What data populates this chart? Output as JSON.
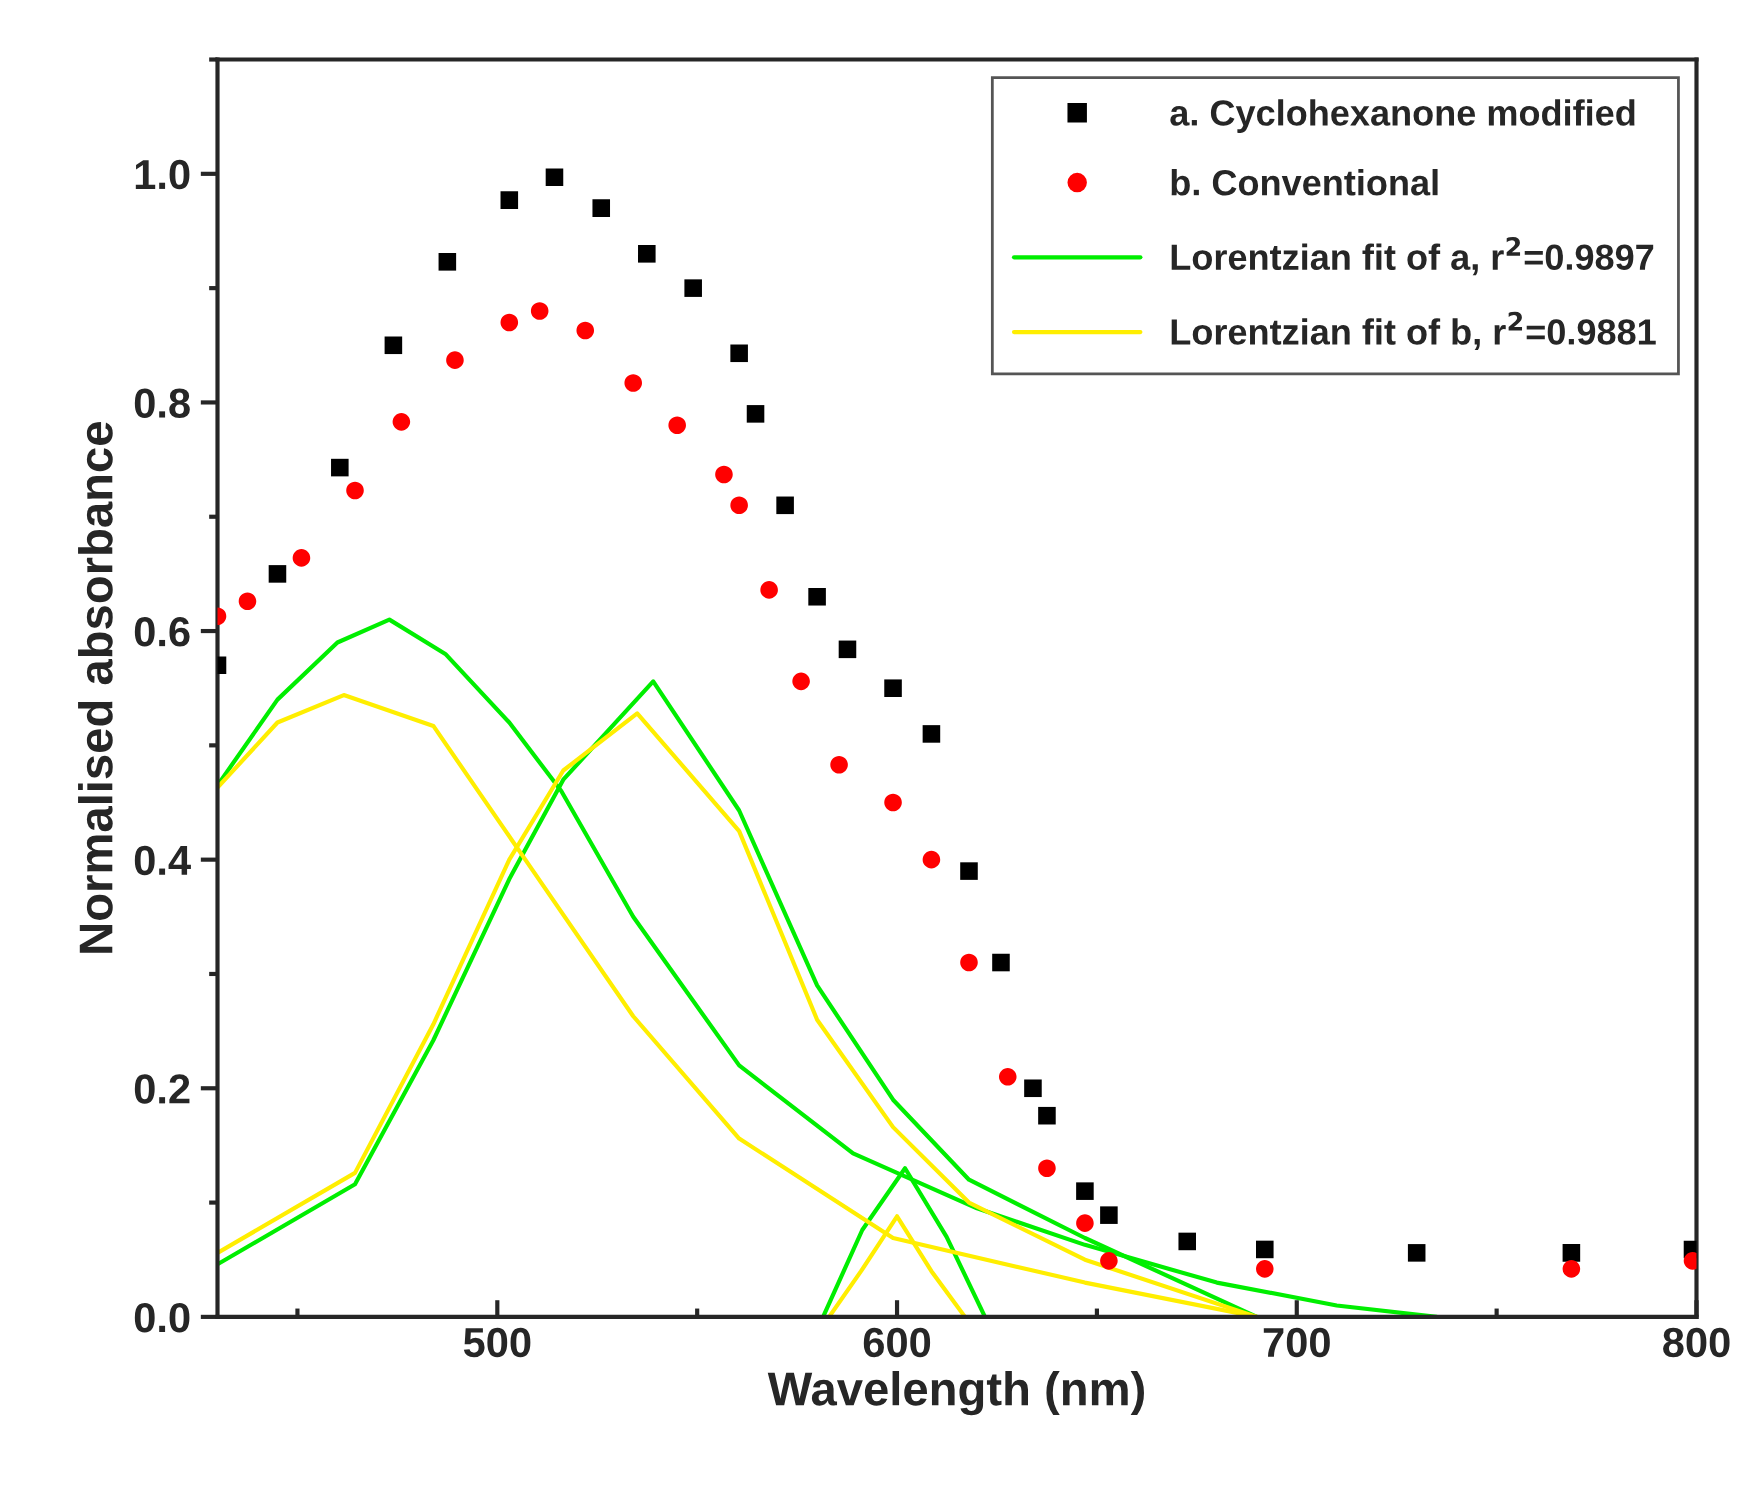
{
  "chart_data": {
    "type": "scatter",
    "xlabel": "Wavelength (nm)",
    "ylabel": "Normalised absorbance",
    "xlim": [
      430,
      800
    ],
    "xticks": [
      500,
      600,
      700,
      800
    ],
    "ylim": [
      0,
      1.1
    ],
    "yticks": [
      {
        "value": 0,
        "label": "0.0"
      },
      {
        "value": 0.2,
        "label": "0.2"
      },
      {
        "value": 0.4,
        "label": "0.4"
      },
      {
        "value": 0.6,
        "label": "0.6"
      },
      {
        "value": 0.8,
        "label": "0.8"
      },
      {
        "value": 1.0,
        "label": "1.0"
      }
    ],
    "grid": false,
    "legend": "top right",
    "series": [
      {
        "name": "a. Cyclohexanone modified",
        "color": "#000000",
        "marker": "square",
        "x": [
          430,
          445,
          460.6,
          474,
          487.5,
          503,
          514.3,
          526,
          537.4,
          549,
          560.5,
          564.6,
          572,
          580,
          587.6,
          599,
          608.6,
          618,
          626,
          634,
          637.5,
          647,
          653,
          672.6,
          692,
          730,
          768.7,
          799
        ],
        "values": [
          0.57,
          0.65,
          0.743,
          0.85,
          0.923,
          0.977,
          0.997,
          0.97,
          0.93,
          0.9,
          0.843,
          0.79,
          0.71,
          0.63,
          0.584,
          0.55,
          0.51,
          0.39,
          0.31,
          0.2,
          0.176,
          0.11,
          0.089,
          0.066,
          0.059,
          0.056,
          0.056,
          0.059
        ]
      },
      {
        "name": "b. Conventional",
        "color": "#ff0000",
        "marker": "circle",
        "x": [
          430,
          437.5,
          451,
          464.4,
          476,
          489.4,
          503,
          510.6,
          522,
          534,
          545,
          556.7,
          560.5,
          568,
          576,
          585.5,
          599,
          608.6,
          618,
          627.7,
          637.5,
          647,
          653,
          692,
          768.7,
          799
        ],
        "values": [
          0.613,
          0.626,
          0.664,
          0.723,
          0.783,
          0.837,
          0.87,
          0.88,
          0.863,
          0.817,
          0.78,
          0.737,
          0.71,
          0.636,
          0.556,
          0.483,
          0.45,
          0.4,
          0.31,
          0.21,
          0.13,
          0.082,
          0.049,
          0.042,
          0.042,
          0.049
        ]
      },
      {
        "name": "Lorentzian fit of a, r$^{2}$=0.9897",
        "type": "line",
        "color": "#00ee00",
        "x": [
          430,
          445,
          460,
          473,
          487,
          503,
          516,
          534,
          560.5,
          589,
          620,
          647,
          680,
          710,
          735
        ],
        "values": [
          0.465,
          0.54,
          0.59,
          0.61,
          0.58,
          0.52,
          0.46,
          0.35,
          0.22,
          0.143,
          0.095,
          0.063,
          0.03,
          0.01,
          0
        ]
      },
      {
        "type": "line",
        "color": "#00ee00",
        "x": [
          430,
          464.4,
          484,
          503,
          516.5,
          539,
          560.5,
          580,
          599,
          618,
          647,
          690
        ],
        "values": [
          0.046,
          0.116,
          0.242,
          0.383,
          0.47,
          0.556,
          0.443,
          0.29,
          0.19,
          0.12,
          0.069,
          0
        ]
      },
      {
        "type": "line",
        "color": "#00ee00",
        "x": [
          581.5,
          591.3,
          602,
          612.4,
          622
        ],
        "values": [
          0,
          0.076,
          0.13,
          0.07,
          0
        ]
      },
      {
        "name": "Lorentzian fit of b, r$^{2}$=0.9881",
        "type": "line",
        "color": "#ffee00",
        "x": [
          430,
          445,
          461.6,
          484,
          507,
          534,
          560.5,
          599,
          647,
          690
        ],
        "values": [
          0.463,
          0.52,
          0.544,
          0.517,
          0.4,
          0.263,
          0.156,
          0.069,
          0.03,
          0
        ]
      },
      {
        "type": "line",
        "color": "#ffee00",
        "x": [
          430,
          464.4,
          484,
          503,
          516.5,
          535,
          560.5,
          580,
          599,
          618,
          647,
          690
        ],
        "values": [
          0.056,
          0.126,
          0.256,
          0.4,
          0.478,
          0.528,
          0.425,
          0.26,
          0.166,
          0.1,
          0.05,
          0
        ]
      },
      {
        "type": "line",
        "color": "#ffee00",
        "x": [
          583,
          591,
          600,
          608.6,
          617
        ],
        "values": [
          0,
          0.04,
          0.088,
          0.04,
          0
        ]
      }
    ]
  }
}
